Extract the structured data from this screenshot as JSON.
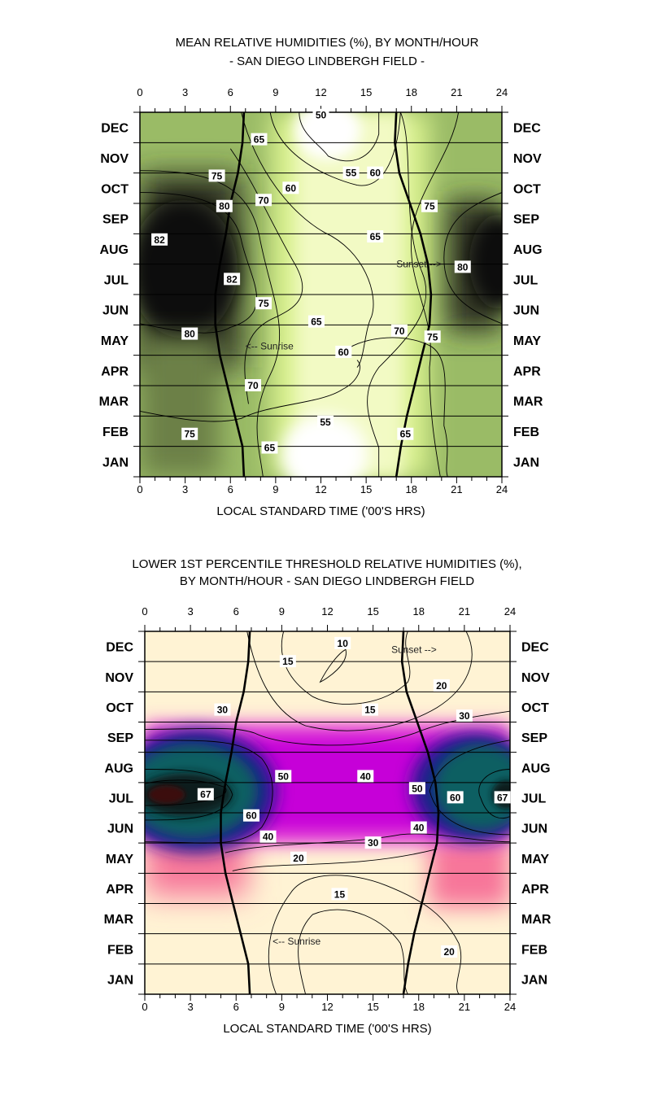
{
  "chart_data": [
    {
      "type": "heatmap",
      "title": "MEAN RELATIVE HUMIDITIES (%), BY MONTH/HOUR",
      "subtitle": "- SAN DIEGO LINDBERGH FIELD -",
      "xlabel": "LOCAL STANDARD TIME ('00'S HRS)",
      "ylabel": "",
      "x_ticks": [
        "0",
        "3",
        "6",
        "9",
        "12",
        "15",
        "18",
        "21",
        "24"
      ],
      "xlim": [
        0,
        24
      ],
      "months": [
        "JAN",
        "FEB",
        "MAR",
        "APR",
        "MAY",
        "JUN",
        "JUL",
        "AUG",
        "SEP",
        "OCT",
        "NOV",
        "DEC"
      ],
      "grid": true,
      "colormap": "white-lime-olive-black (low to high humidity)",
      "contour_levels": [
        50,
        55,
        60,
        65,
        70,
        75,
        80,
        82
      ],
      "contour_labels": [
        {
          "value": "50",
          "hour": 12.0,
          "month": 11.9
        },
        {
          "value": "55",
          "hour": 14.0,
          "month": 10.0
        },
        {
          "value": "55",
          "hour": 12.3,
          "month": 1.8
        },
        {
          "value": "60",
          "hour": 15.6,
          "month": 10.0
        },
        {
          "value": "60",
          "hour": 10.0,
          "month": 9.5
        },
        {
          "value": "60",
          "hour": 13.5,
          "month": 4.1
        },
        {
          "value": "65",
          "hour": 7.9,
          "month": 11.1
        },
        {
          "value": "65",
          "hour": 15.6,
          "month": 7.9
        },
        {
          "value": "65",
          "hour": 11.7,
          "month": 5.1
        },
        {
          "value": "65",
          "hour": 17.6,
          "month": 1.4
        },
        {
          "value": "65",
          "hour": 8.6,
          "month": 0.95
        },
        {
          "value": "70",
          "hour": 8.2,
          "month": 9.1
        },
        {
          "value": "70",
          "hour": 17.2,
          "month": 4.8
        },
        {
          "value": "70",
          "hour": 7.5,
          "month": 3.0
        },
        {
          "value": "75",
          "hour": 5.1,
          "month": 9.9
        },
        {
          "value": "75",
          "hour": 19.2,
          "month": 8.9
        },
        {
          "value": "75",
          "hour": 8.2,
          "month": 5.7
        },
        {
          "value": "75",
          "hour": 19.4,
          "month": 4.6
        },
        {
          "value": "75",
          "hour": 3.3,
          "month": 1.4
        },
        {
          "value": "80",
          "hour": 5.6,
          "month": 8.9
        },
        {
          "value": "80",
          "hour": 21.4,
          "month": 6.9
        },
        {
          "value": "80",
          "hour": 3.3,
          "month": 4.7
        },
        {
          "value": "82",
          "hour": 1.3,
          "month": 7.8
        },
        {
          "value": "82",
          "hour": 6.1,
          "month": 6.5
        }
      ],
      "annotations": [
        {
          "text": "Sunset -->",
          "hour": 17.0,
          "month": 7.0
        },
        {
          "text": "<-- Sunrise",
          "hour": 7.0,
          "month": 4.3
        }
      ],
      "sunrise_hours": [
        6.9,
        6.8,
        6.3,
        5.8,
        5.3,
        5.0,
        5.0,
        5.3,
        5.7,
        6.0,
        6.5,
        6.8,
        6.9
      ],
      "sunset_hours": [
        17.0,
        17.3,
        17.7,
        18.2,
        18.7,
        19.2,
        19.3,
        19.1,
        18.6,
        17.9,
        17.2,
        16.9,
        17.0
      ]
    },
    {
      "type": "heatmap",
      "title": "LOWER 1ST PERCENTILE THRESHOLD RELATIVE HUMIDITIES (%),",
      "subtitle": "BY MONTH/HOUR -  SAN DIEGO LINDBERGH FIELD",
      "xlabel": "LOCAL STANDARD TIME ('00'S HRS)",
      "ylabel": "",
      "x_ticks": [
        "0",
        "3",
        "6",
        "9",
        "12",
        "15",
        "18",
        "21",
        "24"
      ],
      "xlim": [
        0,
        24
      ],
      "months": [
        "JAN",
        "FEB",
        "MAR",
        "APR",
        "MAY",
        "JUN",
        "JUL",
        "AUG",
        "SEP",
        "OCT",
        "NOV",
        "DEC"
      ],
      "grid": true,
      "colormap": "cream-salmon-magenta-purple-teal-black (low to high humidity)",
      "contour_levels": [
        10,
        15,
        20,
        30,
        40,
        50,
        60,
        67
      ],
      "contour_labels": [
        {
          "value": "10",
          "hour": 13.0,
          "month": 11.6
        },
        {
          "value": "15",
          "hour": 9.4,
          "month": 11.0
        },
        {
          "value": "15",
          "hour": 14.8,
          "month": 9.4
        },
        {
          "value": "15",
          "hour": 12.8,
          "month": 3.3
        },
        {
          "value": "20",
          "hour": 19.5,
          "month": 10.2
        },
        {
          "value": "20",
          "hour": 10.1,
          "month": 4.5
        },
        {
          "value": "20",
          "hour": 20.0,
          "month": 1.4
        },
        {
          "value": "30",
          "hour": 5.1,
          "month": 9.4
        },
        {
          "value": "30",
          "hour": 21.0,
          "month": 9.2
        },
        {
          "value": "30",
          "hour": 15.0,
          "month": 5.0
        },
        {
          "value": "40",
          "hour": 14.5,
          "month": 7.2
        },
        {
          "value": "40",
          "hour": 8.1,
          "month": 5.2
        },
        {
          "value": "40",
          "hour": 18.0,
          "month": 5.5
        },
        {
          "value": "50",
          "hour": 9.1,
          "month": 7.2
        },
        {
          "value": "50",
          "hour": 17.9,
          "month": 6.8
        },
        {
          "value": "60",
          "hour": 7.0,
          "month": 5.9
        },
        {
          "value": "60",
          "hour": 20.4,
          "month": 6.5
        },
        {
          "value": "67",
          "hour": 4.0,
          "month": 6.6
        },
        {
          "value": "67",
          "hour": 23.5,
          "month": 6.5
        }
      ],
      "annotations": [
        {
          "text": "Sunset -->",
          "hour": 16.2,
          "month": 11.4
        },
        {
          "text": "<-- Sunrise",
          "hour": 8.4,
          "month": 1.75
        }
      ],
      "sunrise_hours": [
        6.9,
        6.8,
        6.3,
        5.8,
        5.3,
        5.0,
        5.0,
        5.3,
        5.7,
        6.0,
        6.5,
        6.8,
        6.9
      ],
      "sunset_hours": [
        17.0,
        17.3,
        17.7,
        18.2,
        18.7,
        19.2,
        19.3,
        19.1,
        18.6,
        17.9,
        17.2,
        16.9,
        17.0
      ]
    }
  ]
}
